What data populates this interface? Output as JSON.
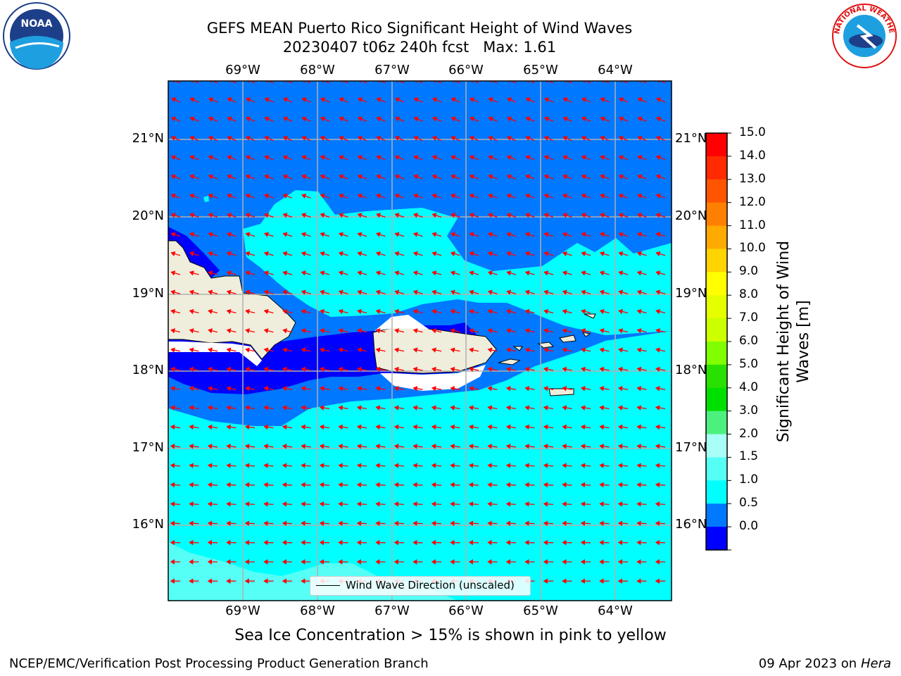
{
  "title": {
    "line1": "GEFS MEAN Puerto Rico Significant Height of Wind Waves",
    "line2": "20230407 t06z 240h fcst   Max: 1.61"
  },
  "axes": {
    "lon_labels": [
      "69°W",
      "68°W",
      "67°W",
      "66°W",
      "65°W",
      "64°W"
    ],
    "lat_labels": [
      "21°N",
      "20°N",
      "19°N",
      "18°N",
      "17°N",
      "16°N"
    ]
  },
  "colorbar": {
    "label": "Significant Height of Wind\nWaves [m]",
    "ticks": [
      "15.0",
      "14.0",
      "13.0",
      "12.0",
      "11.0",
      "10.0",
      "9.0",
      "8.0",
      "7.0",
      "6.0",
      "5.0",
      "4.0",
      "3.0",
      "2.0",
      "1.5",
      "1.0",
      "0.5",
      "0.0"
    ],
    "colors": [
      "#ff0000",
      "#ff2a00",
      "#ff5500",
      "#ff8000",
      "#ffaa00",
      "#ffd400",
      "#ffff00",
      "#e5ff00",
      "#ccff00",
      "#7fff00",
      "#2ae000",
      "#00e000",
      "#4cf07f",
      "#a8fff6",
      "#55fff6",
      "#00ffff",
      "#0078ff",
      "#0000ff"
    ]
  },
  "field_colors": {
    "band_0_05": "#0000ff",
    "band_05_10": "#0078ff",
    "band_10_15": "#00ffff",
    "band_15_20": "#55fff6",
    "land": "#efeedc",
    "arrows": "#ff0000"
  },
  "legend": {
    "text": "Wind Wave Direction (unscaled)"
  },
  "note": "Sea Ice Concentration > 15% is shown in pink to yellow",
  "footer": {
    "left": "NCEP/EMC/Verification Post Processing Product Generation Branch",
    "right_prefix": "09 Apr 2023 on ",
    "right_italic": "Hera"
  },
  "logos": {
    "noaa": "NOAA",
    "nws": "NATIONAL WEATHER SERVICE"
  }
}
